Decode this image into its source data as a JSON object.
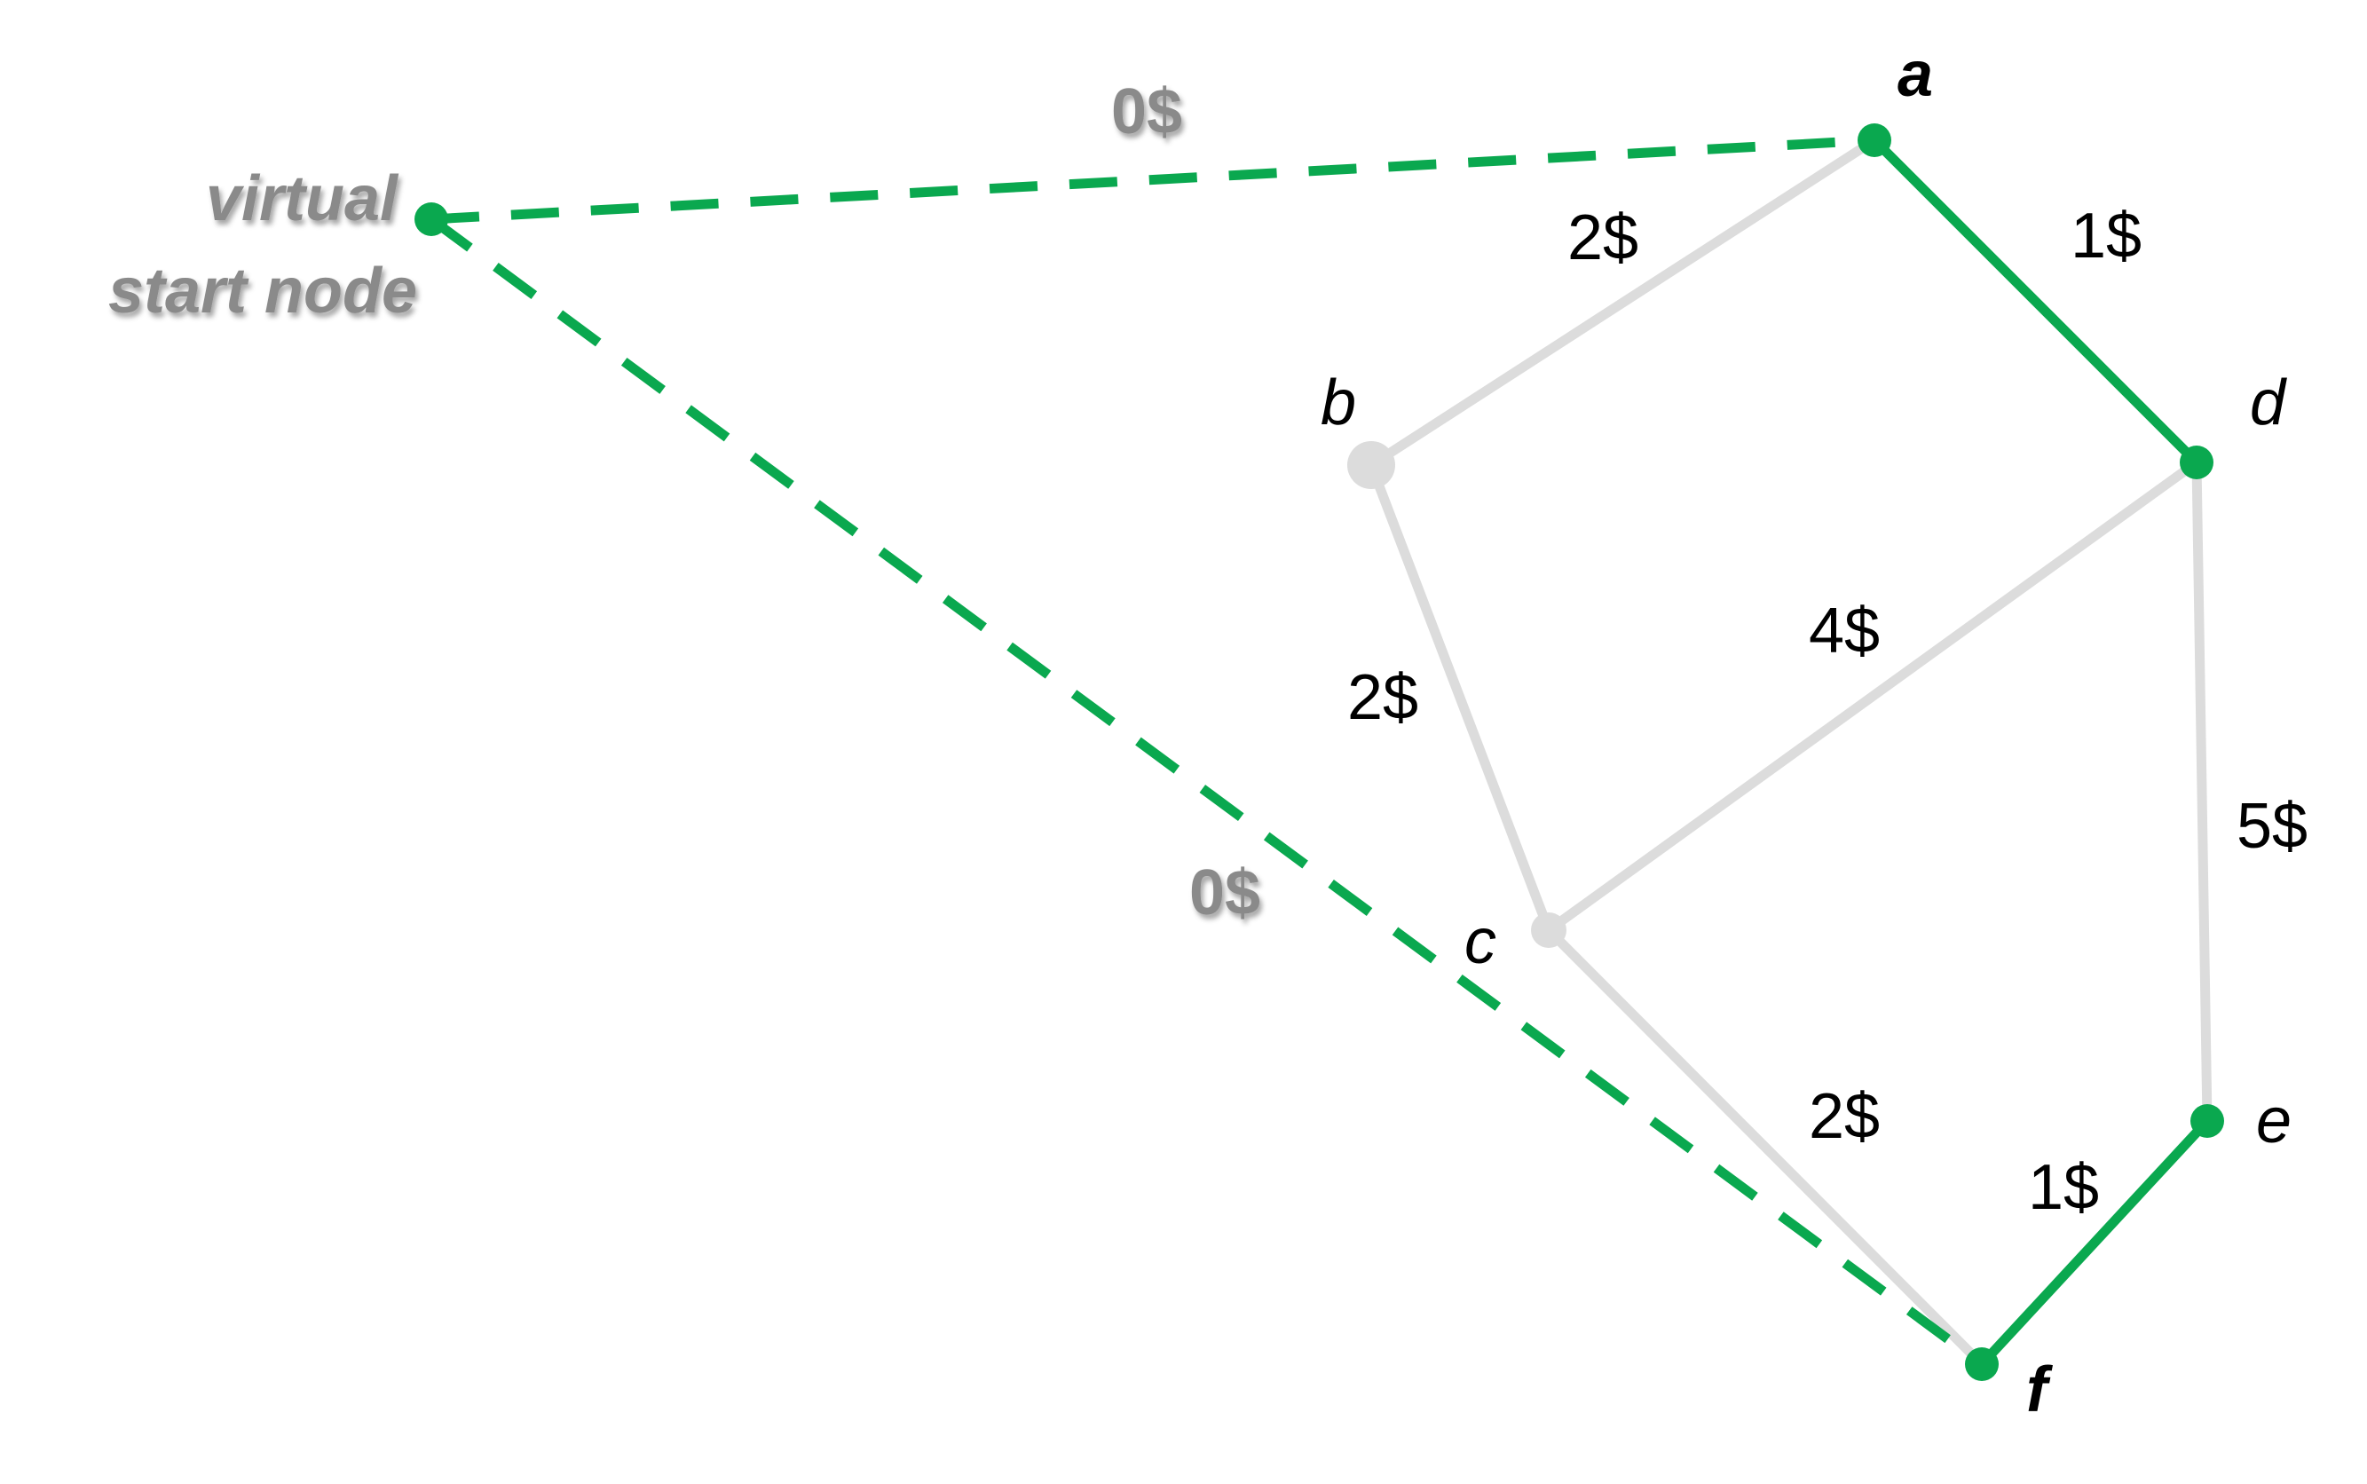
{
  "colors": {
    "selected": "#0aa84f",
    "unselected": "#dcdcdc",
    "label": "#000000",
    "virtual_label": "#8a8a8a"
  },
  "nodes": [
    {
      "id": "virtual",
      "label_line1": "virtual",
      "label_line2": "start node",
      "selected": true
    },
    {
      "id": "a",
      "label": "a",
      "selected": true,
      "bold": true
    },
    {
      "id": "b",
      "label": "b",
      "selected": false,
      "bold": false
    },
    {
      "id": "c",
      "label": "c",
      "selected": false,
      "bold": false
    },
    {
      "id": "d",
      "label": "d",
      "selected": true,
      "bold": false
    },
    {
      "id": "e",
      "label": "e",
      "selected": true,
      "bold": false
    },
    {
      "id": "f",
      "label": "f",
      "selected": true,
      "bold": true
    }
  ],
  "edges": [
    {
      "from": "virtual",
      "to": "a",
      "cost": "0$",
      "style": "dashed",
      "selected": true
    },
    {
      "from": "virtual",
      "to": "f",
      "cost": "0$",
      "style": "dashed",
      "selected": true
    },
    {
      "from": "a",
      "to": "b",
      "cost": "2$",
      "style": "solid",
      "selected": false
    },
    {
      "from": "a",
      "to": "d",
      "cost": "1$",
      "style": "solid",
      "selected": true
    },
    {
      "from": "b",
      "to": "c",
      "cost": "2$",
      "style": "solid",
      "selected": false
    },
    {
      "from": "c",
      "to": "d",
      "cost": "4$",
      "style": "solid",
      "selected": false
    },
    {
      "from": "d",
      "to": "e",
      "cost": "5$",
      "style": "solid",
      "selected": false
    },
    {
      "from": "c",
      "to": "f",
      "cost": "2$",
      "style": "solid",
      "selected": false
    },
    {
      "from": "e",
      "to": "f",
      "cost": "1$",
      "style": "solid",
      "selected": true
    }
  ]
}
